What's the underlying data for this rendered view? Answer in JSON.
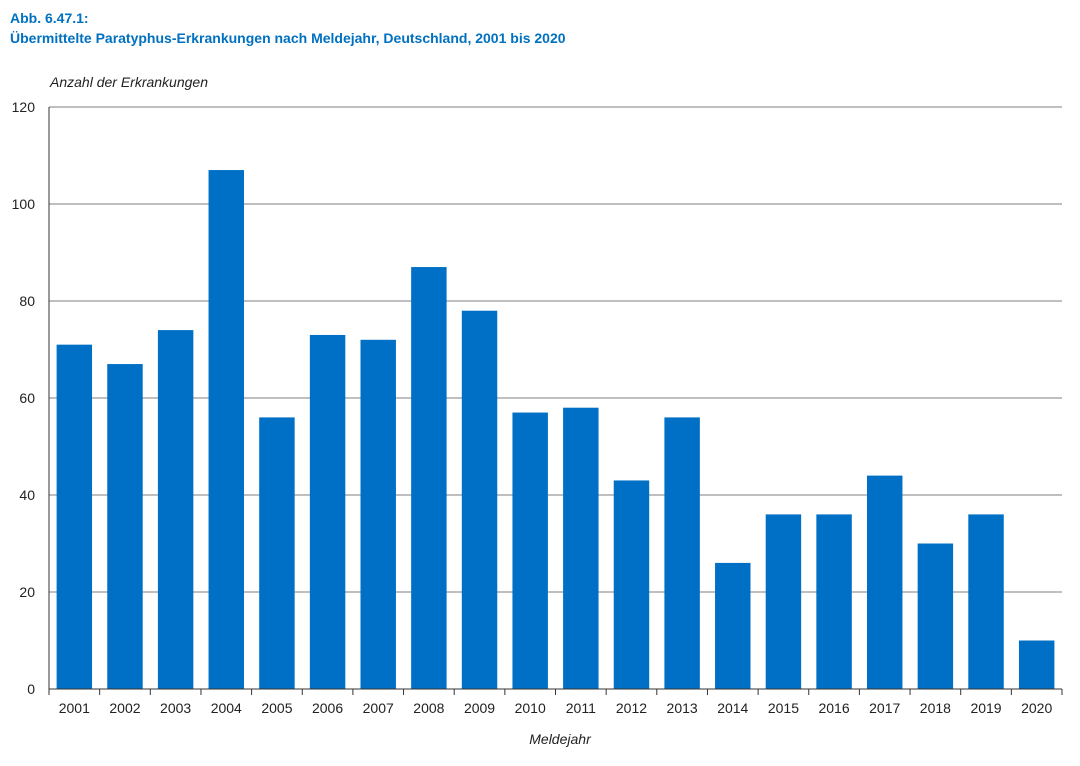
{
  "figure": {
    "number": "Abb. 6.47.1:",
    "title": "Übermittelte Paratyphus-Erkrankungen nach Meldejahr, Deutschland, 2001 bis 2020"
  },
  "colors": {
    "bar": "#0070c6",
    "heading": "#0070c0",
    "grid": "#555555"
  },
  "chart_data": {
    "type": "bar",
    "title": "Übermittelte Paratyphus-Erkrankungen nach Meldejahr, Deutschland, 2001 bis 2020",
    "xlabel": "Meldejahr",
    "ylabel": "Anzahl der Erkrankungen",
    "ylim": [
      0,
      120
    ],
    "yticks": [
      0,
      20,
      40,
      60,
      80,
      100,
      120
    ],
    "grid": true,
    "categories": [
      "2001",
      "2002",
      "2003",
      "2004",
      "2005",
      "2006",
      "2007",
      "2008",
      "2009",
      "2010",
      "2011",
      "2012",
      "2013",
      "2014",
      "2015",
      "2016",
      "2017",
      "2018",
      "2019",
      "2020"
    ],
    "values": [
      71,
      67,
      74,
      107,
      56,
      73,
      72,
      87,
      78,
      57,
      58,
      43,
      56,
      26,
      36,
      36,
      44,
      30,
      36,
      10
    ]
  }
}
